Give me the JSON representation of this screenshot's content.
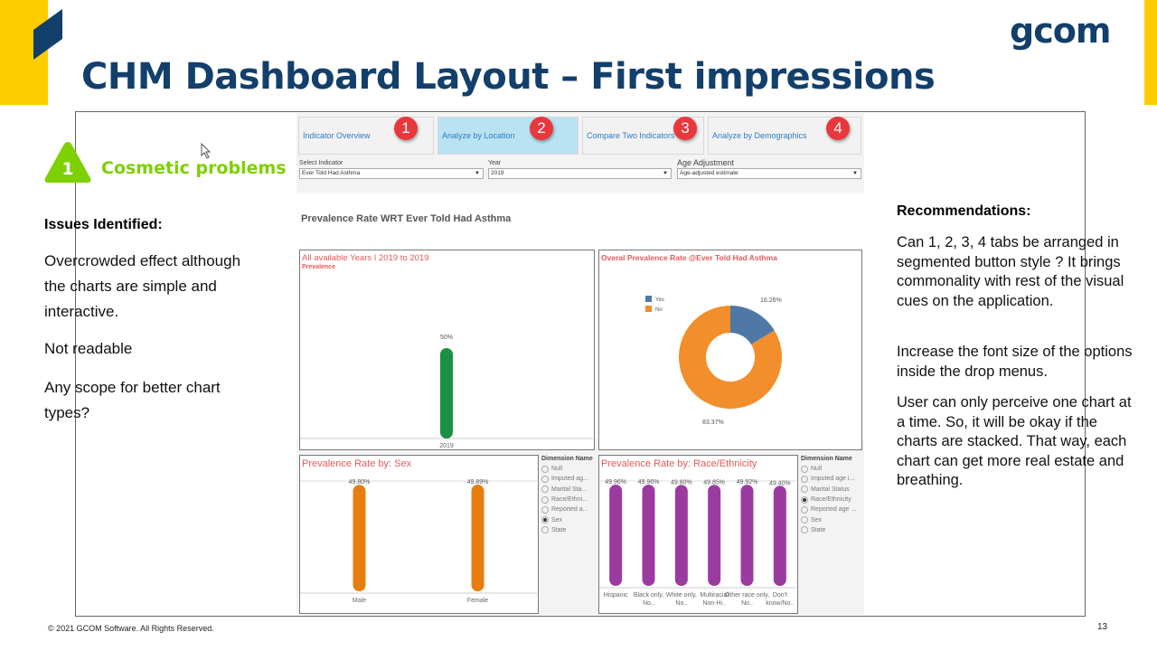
{
  "slide": {
    "title": "CHM Dashboard Layout – First impressions",
    "logo": "gcom",
    "footer": "© 2021 GCOM Software. All Rights Reserved.",
    "page_number": "13",
    "brand_yellow": "#ffcc00",
    "brand_navy": "#123f6b"
  },
  "section": {
    "number": "1",
    "label": "Cosmetic problems",
    "color": "#7ed000"
  },
  "issues": {
    "heading": "Issues Identified:",
    "items": [
      "Overcrowded effect although the charts are simple and interactive.",
      "Not readable",
      "Any scope for better chart types?"
    ]
  },
  "recommendations": {
    "heading": "Recommendations:",
    "items": [
      "Can 1, 2, 3, 4 tabs be arranged in segmented button style ? It brings commonality with rest of the visual cues on the application.",
      "Increase the font size of the options inside the drop menus.",
      "User can only perceive one chart at a time. So, it will be okay if the charts are stacked. That way, each chart can get more real estate and breathing."
    ]
  },
  "dashboard": {
    "tabs": [
      {
        "label": "Indicator Overview",
        "badge": "1",
        "active": false
      },
      {
        "label": "Analyze by Location",
        "badge": "2",
        "active": true
      },
      {
        "label": "Compare Two Indicators",
        "badge": "3",
        "active": false
      },
      {
        "label": "Analyze by Demographics",
        "badge": "4",
        "active": false
      }
    ],
    "filters": [
      {
        "label": "Select Indicator",
        "value": "Ever Told Had Asthma"
      },
      {
        "label": "Year",
        "value": "2019"
      },
      {
        "label": "Age Adjustment",
        "value": "Age-adjusted estimate"
      }
    ],
    "heading": "Prevalence Rate WRT Ever Told Had Asthma",
    "dimension_heading": "Dimension Name",
    "sex_dimensions": [
      "Null",
      "Imputed ag...",
      "Marital Sta...",
      "Race/Ethni...",
      "Reported a...",
      "Sex",
      "State"
    ],
    "sex_selected": 5,
    "race_dimensions": [
      "Null",
      "Imputed age i...",
      "Marital Status",
      "Race/Ethnicity",
      "Reported age ...",
      "Sex",
      "State"
    ],
    "race_selected": 3
  },
  "chart_data": [
    {
      "type": "bar",
      "title": "All available Years  I 2019 to 2019",
      "subtitle": "Prevalence",
      "categories": [
        "2019"
      ],
      "values": [
        50
      ],
      "labels": [
        "50%"
      ],
      "color": "#1a9142"
    },
    {
      "type": "pie",
      "title": "Overal Prevalence Rate @Ever Told Had Asthma",
      "legend": [
        "Yes",
        "No"
      ],
      "values": [
        16.26,
        83.37
      ],
      "labels": [
        "16.26%",
        "83.37%"
      ],
      "colors": [
        "#4e79a7",
        "#f28e2b"
      ],
      "legend_position": "top-left"
    },
    {
      "type": "bar",
      "title": "Prevalence Rate by: Sex",
      "categories": [
        "Male",
        "Female"
      ],
      "values": [
        49.8,
        49.89
      ],
      "labels": [
        "49.80%",
        "49.89%"
      ],
      "color": "#e67e0f"
    },
    {
      "type": "bar",
      "title": "Prevalence Rate by: Race/Ethnicity",
      "categories": [
        "Hispanic",
        "Black only, No..",
        "White only, No..",
        "Multiracial Non-Hi..",
        "Other race only, No..",
        "Don't know/No.."
      ],
      "values": [
        49.96,
        49.96,
        49.8,
        49.85,
        49.92,
        49.4
      ],
      "labels": [
        "49.96%",
        "49.96%",
        "49.80%",
        "49.85%",
        "49.92%",
        "49.40%"
      ],
      "color": "#9b3ba0"
    }
  ]
}
